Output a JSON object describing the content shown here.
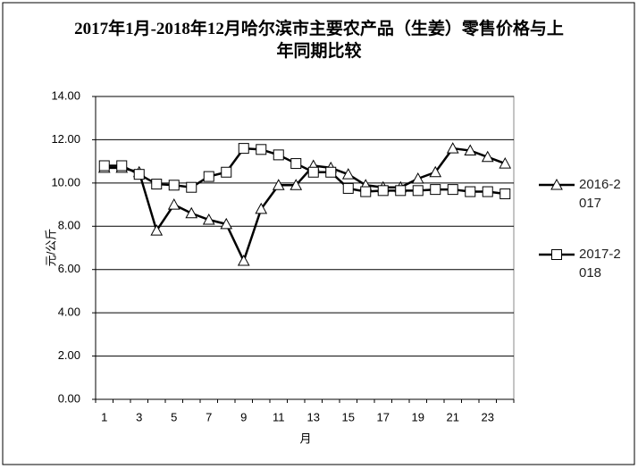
{
  "chart_data": {
    "type": "line",
    "title": "2017年1月-2018年12月哈尔滨市主要农产品（生姜）零售价格与上年同期比较",
    "x_label": "月",
    "y_label": "元/公斤",
    "categories": [
      "1",
      null,
      "3",
      null,
      "5",
      null,
      "7",
      null,
      "9",
      null,
      "11",
      null,
      "13",
      null,
      "15",
      null,
      "17",
      null,
      "19",
      null,
      "21",
      null,
      "23",
      null
    ],
    "series": [
      {
        "name": "2016-2017",
        "color": "#000000",
        "marker": "triangle",
        "values": [
          10.7,
          10.7,
          10.5,
          7.8,
          9.0,
          8.6,
          8.3,
          8.1,
          6.4,
          8.8,
          9.9,
          9.9,
          10.8,
          10.7,
          10.4,
          9.9,
          9.8,
          9.8,
          10.2,
          10.5,
          11.6,
          11.5,
          11.2,
          10.9
        ]
      },
      {
        "name": "2017-2018",
        "color": "#000000",
        "marker": "square",
        "values": [
          10.8,
          10.8,
          10.4,
          9.95,
          9.9,
          9.8,
          10.3,
          10.5,
          11.6,
          11.55,
          11.3,
          10.9,
          10.5,
          10.5,
          9.75,
          9.6,
          9.65,
          9.65,
          9.65,
          9.7,
          9.7,
          9.6,
          9.6,
          9.5
        ]
      }
    ],
    "ylim": [
      0,
      14
    ],
    "yticks": [
      {
        "value": 0,
        "label": "0.00"
      },
      {
        "value": 2,
        "label": "2.00"
      },
      {
        "value": 4,
        "label": "4.00"
      },
      {
        "value": 6,
        "label": "6.00"
      },
      {
        "value": 8,
        "label": "8.00"
      },
      {
        "value": 10,
        "label": "10.00"
      },
      {
        "value": 12,
        "label": "12.00"
      },
      {
        "value": 14,
        "label": "14.00"
      }
    ],
    "grid": true,
    "legend": "right"
  }
}
